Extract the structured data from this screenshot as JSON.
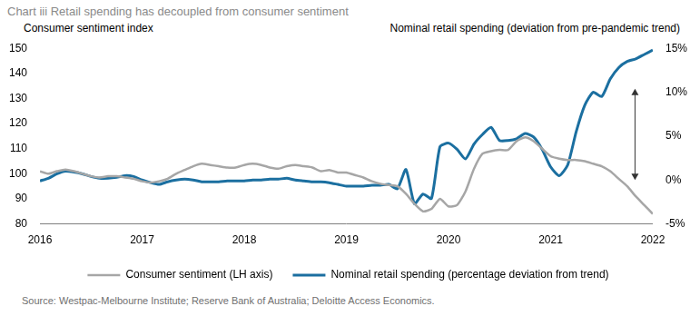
{
  "chart_data": {
    "type": "line",
    "title": "Chart iii Retail spending has decoupled from consumer sentiment",
    "ylabel": "Consumer sentiment index",
    "y2label": "Nominal retail spending (deviation from pre-pandemic trend)",
    "source": "Source: Westpac-Melbourne Institute; Reserve Bank of Australia; Deloitte Access Economics.",
    "categories": [
      "2016",
      null,
      null,
      null,
      null,
      null,
      null,
      null,
      null,
      null,
      null,
      null,
      "2017",
      null,
      null,
      null,
      null,
      null,
      null,
      null,
      null,
      null,
      null,
      null,
      "2018",
      null,
      null,
      null,
      null,
      null,
      null,
      null,
      null,
      null,
      null,
      null,
      "2019",
      null,
      null,
      null,
      null,
      null,
      null,
      null,
      null,
      null,
      null,
      null,
      "2020",
      null,
      null,
      null,
      null,
      null,
      null,
      null,
      null,
      null,
      null,
      null,
      "2021",
      null,
      null,
      null,
      null,
      null,
      null,
      null,
      null,
      null,
      null,
      null,
      "2022"
    ],
    "series": [
      {
        "name": "Consumer sentiment (LH axis)",
        "color": "#a6a6a6",
        "axis": "y",
        "values": [
          101,
          100,
          101,
          101.7,
          101,
          100,
          99,
          98.5,
          99,
          99,
          98.5,
          98,
          97,
          96.5,
          97,
          98,
          100,
          101.5,
          103,
          104,
          103.5,
          103,
          102.5,
          102.5,
          103.5,
          104,
          103.5,
          102.5,
          102,
          103,
          103.5,
          103,
          102.5,
          101,
          101.5,
          100.5,
          100.5,
          99.5,
          98.5,
          97,
          96,
          95.5,
          95,
          92,
          88,
          85,
          86,
          90,
          87,
          87.5,
          93,
          102,
          108,
          109,
          109.5,
          109.5,
          113,
          114.5,
          113,
          110,
          107,
          106,
          105.5,
          105.5,
          105,
          104,
          103,
          101,
          98,
          95,
          91,
          87.5,
          84
        ]
      },
      {
        "name": "Nominal retail spending (percentage deviation from trend)",
        "color": "#1b6fa0",
        "axis": "y2",
        "values": [
          -0.1,
          0.2,
          0.7,
          1.0,
          0.9,
          0.7,
          0.4,
          0.2,
          0.2,
          0.3,
          0.5,
          0.4,
          0.0,
          -0.3,
          -0.5,
          -0.2,
          0.0,
          0.1,
          0.0,
          -0.2,
          -0.2,
          -0.2,
          -0.1,
          -0.1,
          -0.1,
          0.0,
          0.0,
          0.1,
          0.1,
          0.2,
          0.0,
          -0.1,
          -0.2,
          -0.2,
          -0.3,
          -0.5,
          -0.7,
          -0.7,
          -0.7,
          -0.6,
          -0.6,
          -0.5,
          -1.0,
          1.2,
          -2.7,
          -1.6,
          -2.1,
          3.8,
          4.2,
          3.5,
          2.4,
          4.1,
          5.2,
          6.0,
          4.5,
          4.5,
          4.7,
          5.3,
          4.9,
          3.5,
          1.5,
          0.5,
          1.7,
          5.5,
          8.5,
          10.0,
          9.5,
          11.5,
          12.8,
          13.5,
          13.8,
          14.3,
          14.8
        ]
      }
    ],
    "ylim": [
      80,
      150
    ],
    "yticks": [
      80,
      90,
      100,
      110,
      120,
      130,
      140,
      150
    ],
    "y2lim": [
      -5,
      15
    ],
    "y2ticks": [
      {
        "value": -5,
        "label": "-5%"
      },
      {
        "value": 0,
        "label": "0%"
      },
      {
        "value": 5,
        "label": "5%"
      },
      {
        "value": 10,
        "label": "10%"
      },
      {
        "value": 15,
        "label": "15%"
      }
    ],
    "grid": false,
    "legend": "bottom"
  }
}
